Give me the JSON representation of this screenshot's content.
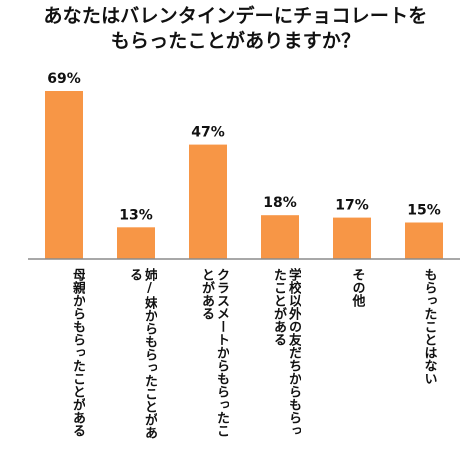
{
  "chart_data": {
    "type": "bar",
    "title": "あなたはバレンタインデーにチョコレートを\nもらったことがありますか？",
    "categories": [
      "母親からもらったことがある",
      "姉/妹からもらったことがある",
      "クラスメートからもらったことがある",
      "学校以外の友だちからもらったことがある",
      "その他",
      "もらったことはない"
    ],
    "values": [
      69,
      13,
      47,
      18,
      17,
      15
    ],
    "value_labels": [
      "69%",
      "13%",
      "47%",
      "18%",
      "17%",
      "15%"
    ],
    "ylim": [
      0,
      69
    ],
    "grid": false,
    "legend": "none",
    "bar_color": "#f79646"
  }
}
